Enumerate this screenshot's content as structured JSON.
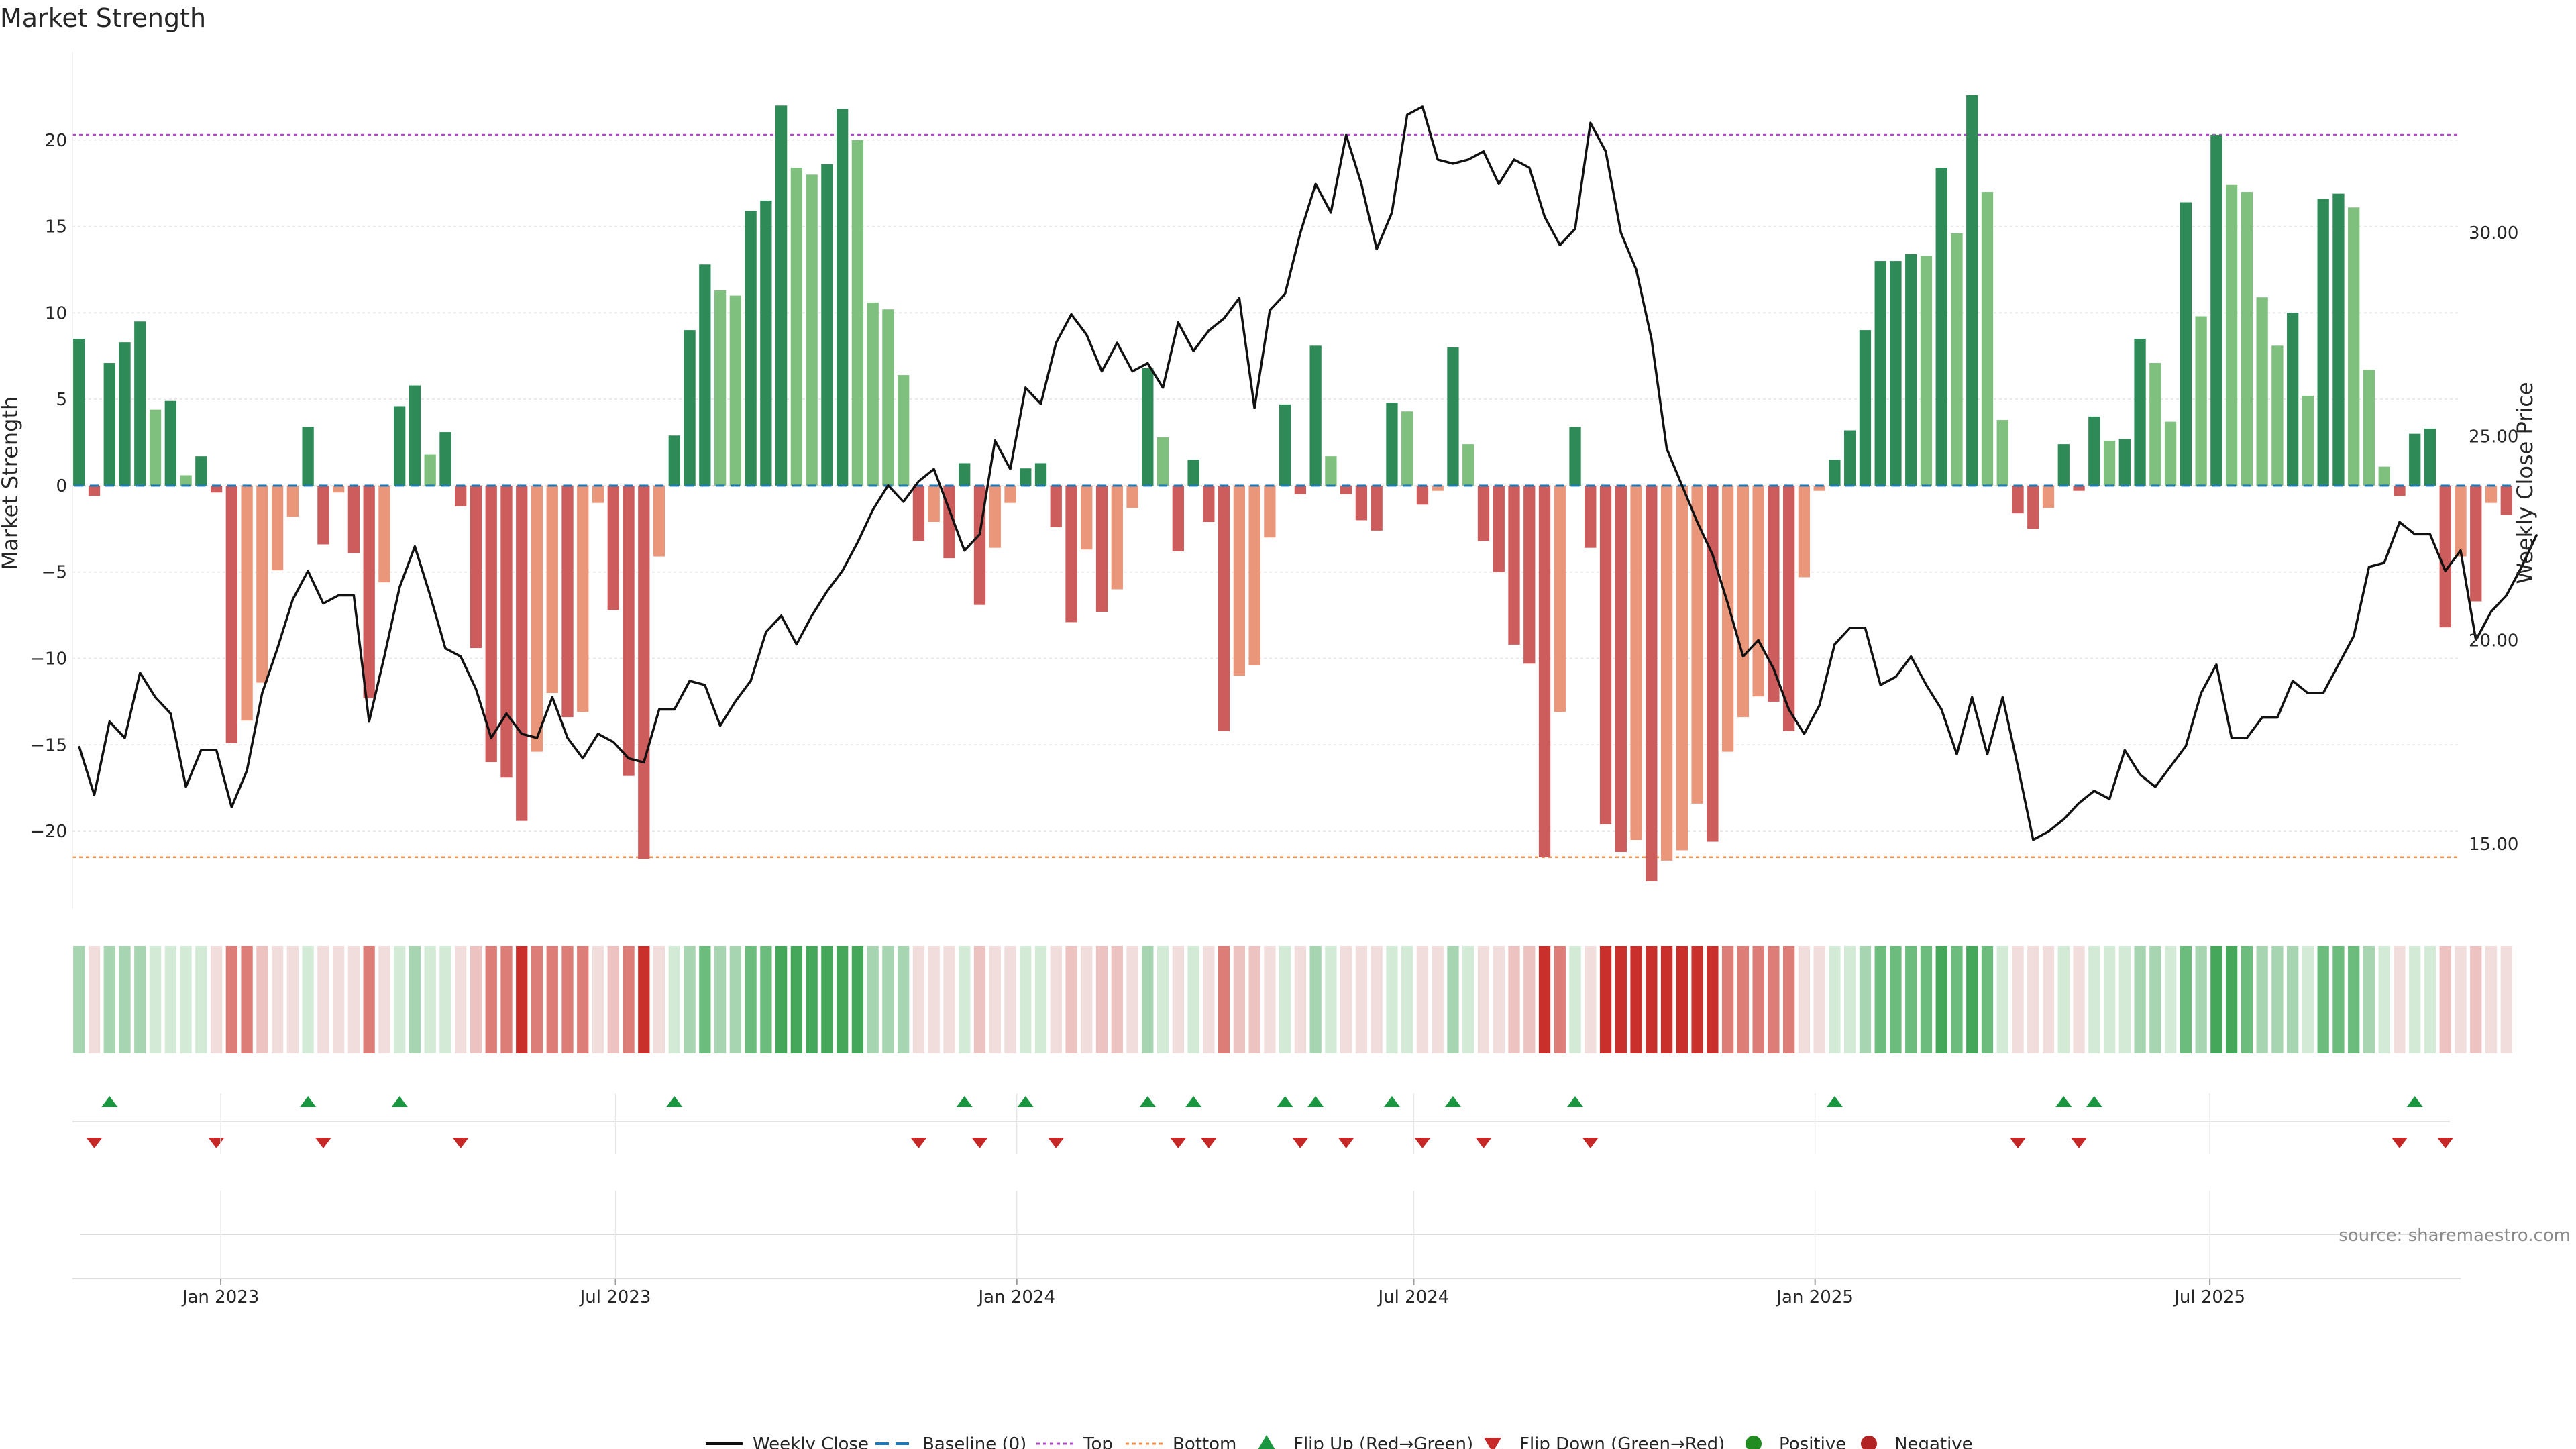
{
  "chart_data": {
    "type": "bar",
    "title": "Market Strength",
    "ylabel": "Market Strength",
    "y2label": "Weekly Close Price",
    "ylim": [
      -24.5,
      25.0
    ],
    "y2lim": [
      13.4,
      34.4
    ],
    "yticks": [
      -20,
      -15,
      -10,
      -5,
      0,
      5,
      10,
      15,
      20
    ],
    "yticklabels": [
      "−20",
      "−15",
      "−10",
      "−5",
      "0",
      "5",
      "10",
      "15",
      "20"
    ],
    "y2ticks": [
      15,
      20,
      25,
      30
    ],
    "y2ticklabels": [
      "15.00",
      "20.00",
      "25.00",
      "30.00"
    ],
    "xlim": [
      "2022-10-25",
      "2025-10-24"
    ],
    "xticks": [
      "2023-01-01",
      "2023-07-01",
      "2024-01-01",
      "2024-07-01",
      "2025-01-01",
      "2025-07-01"
    ],
    "xticklabels": [
      "Jan 2023",
      "Jul 2023",
      "Jan 2024",
      "Jul 2024",
      "Jan 2025",
      "Jul 2025"
    ],
    "start_date": "2022-10-28",
    "top_line": 20.3,
    "bottom_line": -21.5,
    "baseline": 0,
    "grid": true,
    "legend_position": "bottom-center",
    "source": "source: sharemaestro.com",
    "strength": [
      8.5,
      -0.6,
      7.1,
      8.3,
      9.5,
      4.4,
      4.9,
      0.6,
      1.7,
      -0.4,
      -14.9,
      -13.6,
      -11.4,
      -4.9,
      -1.8,
      3.4,
      -3.4,
      -0.4,
      -3.9,
      -12.3,
      -5.6,
      4.6,
      5.8,
      1.8,
      3.1,
      -1.2,
      -9.4,
      -16.0,
      -16.9,
      -19.4,
      -15.4,
      -12.0,
      -13.4,
      -13.1,
      -1.0,
      -7.2,
      -16.8,
      -21.6,
      -4.1,
      2.9,
      9.0,
      12.8,
      11.3,
      11.0,
      15.9,
      16.5,
      22.0,
      18.4,
      18.0,
      18.6,
      21.8,
      20.0,
      10.6,
      10.2,
      6.4,
      -3.2,
      -2.1,
      -4.2,
      1.3,
      -6.9,
      -3.6,
      -1.0,
      1.0,
      1.3,
      -2.4,
      -7.9,
      -3.7,
      -7.3,
      -6.0,
      -1.3,
      6.8,
      2.8,
      -3.8,
      1.5,
      -2.1,
      -14.2,
      -11.0,
      -10.4,
      -3.0,
      4.7,
      -0.5,
      8.1,
      1.7,
      -0.5,
      -2.0,
      -2.6,
      4.8,
      4.3,
      -1.1,
      -0.3,
      8.0,
      2.4,
      -3.2,
      -5.0,
      -9.2,
      -10.3,
      -21.5,
      -13.1,
      3.4,
      -3.6,
      -19.6,
      -21.2,
      -20.5,
      -22.9,
      -21.7,
      -21.1,
      -18.4,
      -20.6,
      -15.4,
      -13.4,
      -12.2,
      -12.5,
      -14.2,
      -5.3,
      -0.3,
      1.5,
      3.2,
      9.0,
      13.0,
      13.0,
      13.4,
      13.3,
      18.4,
      14.6,
      22.6,
      17.0,
      3.8,
      -1.6,
      -2.5,
      -1.3,
      2.4,
      -0.3,
      4.0,
      2.6,
      2.7,
      8.5,
      7.1,
      3.7,
      16.4,
      9.8,
      20.3,
      17.4,
      17.0,
      10.9,
      8.1,
      10.0,
      5.2,
      16.6,
      16.9,
      16.1,
      6.7,
      1.1,
      -0.6,
      3.0,
      3.3,
      -8.2,
      -4.1,
      -6.7,
      -1.0,
      -1.7
    ],
    "close": [
      17.4,
      16.2,
      18.0,
      17.6,
      19.2,
      18.6,
      18.2,
      16.4,
      17.3,
      17.3,
      15.9,
      16.8,
      18.7,
      19.8,
      21.0,
      21.7,
      20.9,
      21.1,
      21.1,
      18.0,
      19.6,
      21.3,
      22.3,
      21.1,
      19.8,
      19.6,
      18.8,
      17.6,
      18.2,
      17.7,
      17.6,
      18.6,
      17.6,
      17.1,
      17.7,
      17.5,
      17.1,
      17.0,
      18.3,
      18.3,
      19.0,
      18.9,
      17.9,
      18.5,
      19.0,
      20.2,
      20.6,
      19.9,
      20.6,
      21.2,
      21.7,
      22.4,
      23.2,
      23.8,
      23.4,
      23.9,
      24.2,
      23.2,
      22.2,
      22.6,
      24.9,
      24.2,
      26.2,
      25.8,
      27.3,
      28.0,
      27.5,
      26.6,
      27.3,
      26.6,
      26.8,
      26.2,
      27.8,
      27.1,
      27.6,
      27.9,
      28.4,
      25.7,
      28.1,
      28.5,
      30.0,
      31.2,
      30.5,
      32.4,
      31.2,
      29.6,
      30.5,
      32.9,
      33.1,
      31.8,
      31.7,
      31.8,
      32.0,
      31.2,
      31.8,
      31.6,
      30.4,
      29.7,
      30.1,
      32.7,
      32.0,
      30.0,
      29.1,
      27.4,
      24.7,
      23.8,
      22.9,
      22.1,
      20.9,
      19.6,
      20.0,
      19.3,
      18.3,
      17.7,
      18.4,
      19.9,
      20.3,
      20.3,
      18.9,
      19.1,
      19.6,
      18.9,
      18.3,
      17.2,
      18.6,
      17.2,
      18.6,
      16.9,
      15.1,
      15.3,
      15.6,
      16.0,
      16.3,
      16.1,
      17.3,
      16.7,
      16.4,
      16.9,
      17.4,
      18.7,
      19.4,
      17.6,
      17.6,
      18.1,
      18.1,
      19.0,
      18.7,
      18.7,
      19.4,
      20.1,
      21.8,
      21.9,
      22.9,
      22.6,
      22.6,
      21.7,
      22.2,
      20.0,
      20.7,
      21.1,
      21.8,
      22.6
    ]
  },
  "heat_colors": [
    "#c9302c",
    "#dc7d78",
    "#edc3c1",
    "#f1dddc",
    "#d3ead7",
    "#a8d5b1",
    "#6cbd7d",
    "#44a75a"
  ],
  "colors": {
    "pos_strong": "#2e8b57",
    "pos_light": "#7fc07f",
    "neg_strong": "#cd5c5c",
    "neg_light": "#e9967a",
    "close_line": "#111111",
    "baseline": "#1f77b4",
    "top": "#b048c8",
    "bottom": "#f08c46",
    "flip_up": "#1a9641",
    "flip_down": "#c62828",
    "positive_dot": "#228b22",
    "negative_dot": "#b22222"
  },
  "legend": [
    {
      "key": "weekly_close",
      "label": "Weekly Close"
    },
    {
      "key": "baseline",
      "label": "Baseline (0)"
    },
    {
      "key": "top",
      "label": "Top"
    },
    {
      "key": "bottom",
      "label": "Bottom"
    },
    {
      "key": "flip_up",
      "label": "Flip Up (Red→Green)"
    },
    {
      "key": "flip_down",
      "label": "Flip Down (Green→Red)"
    },
    {
      "key": "positive",
      "label": "Positive"
    },
    {
      "key": "negative",
      "label": "Negative"
    }
  ]
}
